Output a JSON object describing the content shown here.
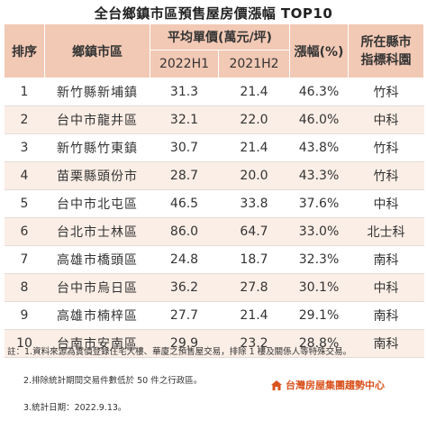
{
  "title": "全台鄉鎮市區預售屋房價漲幅 TOP10",
  "headers": {
    "rank": "排序",
    "town": "鄉鎮市區",
    "avg_price": "平均單價(萬元/坪)",
    "period1": "2022H1",
    "period2": "2021H2",
    "growth": "漲幅(%)",
    "park": "所在縣市指標科園"
  },
  "rows": [
    {
      "rank": "1",
      "town": "新竹縣新埔鎮",
      "p2022h1": "31.3",
      "p2021h2": "21.4",
      "growth": "46.3%",
      "park": "竹科"
    },
    {
      "rank": "2",
      "town": "台中市龍井區",
      "p2022h1": "32.1",
      "p2021h2": "22.0",
      "growth": "46.0%",
      "park": "中科"
    },
    {
      "rank": "3",
      "town": "新竹縣竹東鎮",
      "p2022h1": "30.7",
      "p2021h2": "21.4",
      "growth": "43.8%",
      "park": "竹科"
    },
    {
      "rank": "4",
      "town": "苗栗縣頭份市",
      "p2022h1": "28.7",
      "p2021h2": "20.0",
      "growth": "43.3%",
      "park": "竹科"
    },
    {
      "rank": "5",
      "town": "台中市北屯區",
      "p2022h1": "46.5",
      "p2021h2": "33.8",
      "growth": "37.6%",
      "park": "中科"
    },
    {
      "rank": "6",
      "town": "台北市士林區",
      "p2022h1": "86.0",
      "p2021h2": "64.7",
      "growth": "33.0%",
      "park": "北士科"
    },
    {
      "rank": "7",
      "town": "高雄市橋頭區",
      "p2022h1": "24.8",
      "p2021h2": "18.7",
      "growth": "32.3%",
      "park": "南科"
    },
    {
      "rank": "8",
      "town": "台中市烏日區",
      "p2022h1": "36.2",
      "p2021h2": "27.8",
      "growth": "30.1%",
      "park": "中科"
    },
    {
      "rank": "9",
      "town": "高雄市楠梓區",
      "p2022h1": "27.7",
      "p2021h2": "21.4",
      "growth": "29.1%",
      "park": "南科"
    },
    {
      "rank": "10",
      "town": "台南市安南區",
      "p2022h1": "29.9",
      "p2021h2": "23.2",
      "growth": "28.8%",
      "park": "南科"
    }
  ],
  "notes": {
    "n1": "註：1.資料來源為實價登錄住宅大樓、華廈之預售屋交易，排除 1 樓及關係人等特殊交易。",
    "n2": "2.排除統計期間交易件數低於 50 件之行政區。",
    "n3": "3.統計日期：2022.9.13。"
  },
  "logo_text": "台灣房屋集團趨勢中心",
  "colors": {
    "header_bg": "#f2c9b5",
    "stripe_bg": "#fbeee6",
    "logo": "#d9531e"
  },
  "chart_data": {
    "type": "table",
    "title": "全台鄉鎮市區預售屋房價漲幅 TOP10",
    "columns": [
      "排序",
      "鄉鎮市區",
      "2022H1",
      "2021H2",
      "漲幅(%)",
      "所在縣市指標科園"
    ],
    "column_groups": [
      {
        "label": "平均單價(萬元/坪)",
        "columns": [
          "2022H1",
          "2021H2"
        ]
      }
    ],
    "rows": [
      [
        1,
        "新竹縣新埔鎮",
        31.3,
        21.4,
        46.3,
        "竹科"
      ],
      [
        2,
        "台中市龍井區",
        32.1,
        22.0,
        46.0,
        "中科"
      ],
      [
        3,
        "新竹縣竹東鎮",
        30.7,
        21.4,
        43.8,
        "竹科"
      ],
      [
        4,
        "苗栗縣頭份市",
        28.7,
        20.0,
        43.3,
        "竹科"
      ],
      [
        5,
        "台中市北屯區",
        46.5,
        33.8,
        37.6,
        "中科"
      ],
      [
        6,
        "台北市士林區",
        86.0,
        64.7,
        33.0,
        "北士科"
      ],
      [
        7,
        "高雄市橋頭區",
        24.8,
        18.7,
        32.3,
        "南科"
      ],
      [
        8,
        "台中市烏日區",
        36.2,
        27.8,
        30.1,
        "中科"
      ],
      [
        9,
        "高雄市楠梓區",
        27.7,
        21.4,
        29.1,
        "南科"
      ],
      [
        10,
        "台南市安南區",
        29.9,
        23.2,
        28.8,
        "南科"
      ]
    ]
  }
}
